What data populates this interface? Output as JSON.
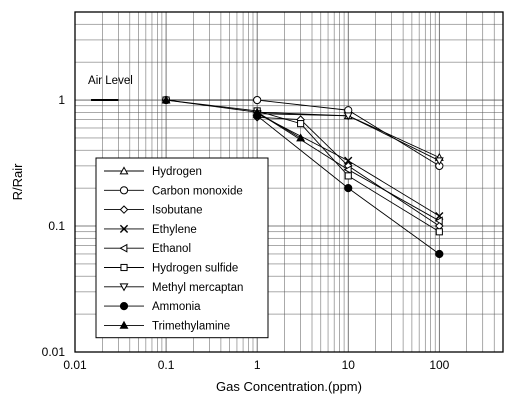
{
  "chart_data": {
    "type": "line",
    "title": "",
    "xlabel": "Gas Concentration.(ppm)",
    "ylabel": "R/Rair",
    "x_scale": "log",
    "y_scale": "log",
    "xlim": [
      0.01,
      500
    ],
    "ylim": [
      0.01,
      5
    ],
    "x_ticks": [
      0.01,
      0.1,
      1,
      10,
      100
    ],
    "x_tick_labels": [
      "0.01",
      "0.1",
      "1",
      "10",
      "100"
    ],
    "y_ticks": [
      0.01,
      0.1,
      1
    ],
    "y_tick_labels": [
      "0.01",
      "0.1",
      "1"
    ],
    "grid": true,
    "legend_position": "lower-left",
    "annotation": {
      "text": "Air Level",
      "x": 0.015,
      "y": 1.2
    },
    "air_level": {
      "x_start": 0.015,
      "x_end": 0.03,
      "y": 1
    },
    "series": [
      {
        "name": "Hydrogen",
        "marker": "triangle-up-open",
        "x": [
          1,
          10,
          100
        ],
        "y": [
          0.8,
          0.75,
          0.35
        ]
      },
      {
        "name": "Carbon monoxide",
        "marker": "circle-open",
        "x": [
          0.1,
          1,
          10,
          100
        ],
        "y": [
          1,
          1,
          0.83,
          0.3
        ]
      },
      {
        "name": "Isobutane",
        "marker": "diamond-open",
        "x": [
          1,
          3,
          10,
          100
        ],
        "y": [
          0.73,
          0.7,
          0.3,
          0.1
        ]
      },
      {
        "name": "Ethylene",
        "marker": "x",
        "x": [
          1,
          10,
          100
        ],
        "y": [
          0.78,
          0.33,
          0.12
        ]
      },
      {
        "name": "Ethanol",
        "marker": "triangle-left-open",
        "x": [
          1,
          10,
          100
        ],
        "y": [
          0.8,
          0.28,
          0.11
        ]
      },
      {
        "name": "Hydrogen sulfide",
        "marker": "square-open",
        "x": [
          0.1,
          1,
          3,
          10,
          100
        ],
        "y": [
          1,
          0.82,
          0.65,
          0.25,
          0.09
        ]
      },
      {
        "name": "Methyl mercaptan",
        "marker": "triangle-down-open",
        "x": [
          1,
          10,
          100
        ],
        "y": [
          0.78,
          0.75,
          0.33
        ]
      },
      {
        "name": "Ammonia",
        "marker": "circle-filled",
        "x": [
          1,
          10,
          100
        ],
        "y": [
          0.75,
          0.2,
          0.06
        ]
      },
      {
        "name": "Trimethylamine",
        "marker": "triangle-up-filled",
        "x": [
          0.1,
          1,
          3
        ],
        "y": [
          1,
          0.8,
          0.5
        ]
      }
    ]
  }
}
